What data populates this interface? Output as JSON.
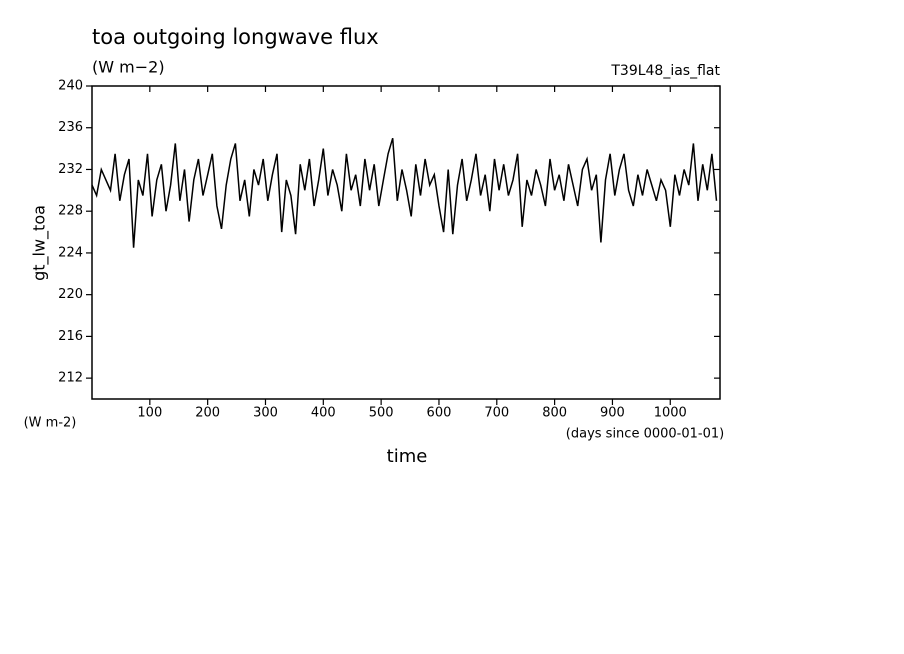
{
  "chart_data": {
    "type": "line",
    "title": "toa outgoing longwave flux",
    "subtitle": "(W m−2)",
    "annotation": "T39L48_ias_flat",
    "ylabel": "gt_lw_toa",
    "yunits": "(W m-2)",
    "xunits": "(days since 0000-01-01)",
    "xlabel": "time",
    "xlim": [
      0,
      1086
    ],
    "xticks": [
      100,
      200,
      300,
      400,
      500,
      600,
      700,
      800,
      900,
      1000
    ],
    "ylim": [
      210,
      240
    ],
    "yticks": [
      212,
      216,
      220,
      224,
      228,
      232,
      236,
      240
    ],
    "color": "#000000",
    "x": [
      0,
      8,
      16,
      24,
      32,
      40,
      48,
      56,
      64,
      72,
      80,
      88,
      96,
      104,
      112,
      120,
      128,
      136,
      144,
      152,
      160,
      168,
      176,
      184,
      192,
      200,
      208,
      216,
      224,
      232,
      240,
      248,
      256,
      264,
      272,
      280,
      288,
      296,
      304,
      312,
      320,
      328,
      336,
      344,
      352,
      360,
      368,
      376,
      384,
      392,
      400,
      408,
      416,
      424,
      432,
      440,
      448,
      456,
      464,
      472,
      480,
      488,
      496,
      504,
      512,
      520,
      528,
      536,
      544,
      552,
      560,
      568,
      576,
      584,
      592,
      600,
      608,
      616,
      624,
      632,
      640,
      648,
      656,
      664,
      672,
      680,
      688,
      696,
      704,
      712,
      720,
      728,
      736,
      744,
      752,
      760,
      768,
      776,
      784,
      792,
      800,
      808,
      816,
      824,
      832,
      840,
      848,
      856,
      864,
      872,
      880,
      888,
      896,
      904,
      912,
      920,
      928,
      936,
      944,
      952,
      960,
      968,
      976,
      984,
      992,
      1000,
      1008,
      1016,
      1024,
      1032,
      1040,
      1048,
      1056,
      1064,
      1072,
      1080
    ],
    "values": [
      230.5,
      229.5,
      232,
      231,
      230,
      233.5,
      229,
      231.5,
      233,
      224.5,
      231,
      229.5,
      233.5,
      227.5,
      231,
      232.5,
      228,
      230.5,
      234.5,
      229,
      232,
      227,
      231,
      233,
      229.5,
      231.5,
      233.5,
      228.5,
      226.3,
      230.5,
      233,
      234.5,
      229,
      231,
      227.5,
      232,
      230.5,
      233,
      229,
      231.5,
      233.5,
      226,
      231,
      229.5,
      225.8,
      232.5,
      230,
      233,
      228.5,
      231,
      234,
      229.5,
      232,
      230.5,
      228,
      233.5,
      230,
      231.5,
      228.5,
      233,
      230,
      232.5,
      228.5,
      231,
      233.5,
      235,
      229,
      232,
      230,
      227.5,
      232.5,
      229.5,
      233,
      230.5,
      231.5,
      228.5,
      226,
      232,
      225.8,
      230.5,
      233,
      229,
      231,
      233.5,
      229.5,
      231.5,
      228,
      233,
      230,
      232.5,
      229.5,
      231,
      233.5,
      226.5,
      231,
      229.5,
      232,
      230.5,
      228.5,
      233,
      230,
      231.5,
      229,
      232.5,
      230.5,
      228.5,
      232,
      233,
      230,
      231.5,
      225,
      231,
      233.5,
      229.5,
      232,
      233.5,
      230,
      228.5,
      231.5,
      229.5,
      232,
      230.5,
      229,
      231,
      230,
      226.5,
      231.5,
      229.5,
      232,
      230.5,
      234.5,
      229,
      232.5,
      230,
      233.5,
      229
    ]
  }
}
